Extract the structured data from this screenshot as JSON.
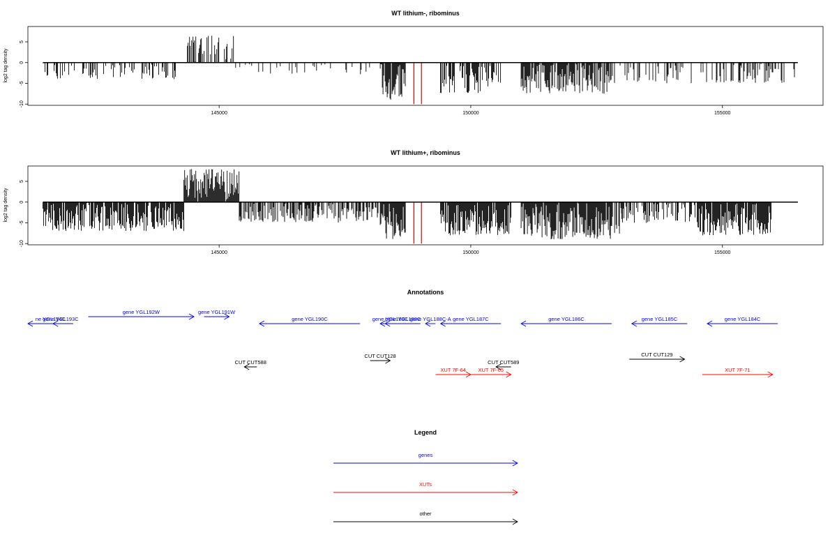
{
  "chart_data": [
    {
      "type": "bar",
      "title": "WT lithium-, ribominus",
      "ylabel": "log2 tag density",
      "xlabel": "",
      "xlim": [
        141200,
        157000
      ],
      "ylim": [
        -10.3,
        8.7
      ],
      "x_ticks": [
        145000,
        150000,
        155000
      ],
      "x_tick_labels": [
        "145000",
        "150000",
        "155000"
      ],
      "y_ticks": [
        -10,
        -5,
        0,
        5
      ],
      "y_tick_labels": [
        "-10",
        "-5",
        "0",
        "5"
      ],
      "grid": false,
      "range": [
        141500,
        156500
      ],
      "baseline_color": "#000000",
      "bar_color": "#000000",
      "highlight_color": "#dd0000",
      "highlights": [
        {
          "x": 148870,
          "y": -10
        },
        {
          "x": 149020,
          "y": -10
        }
      ],
      "regions": [
        {
          "start": 141500,
          "end": 144300,
          "sign": -1,
          "fill": 0.35,
          "max": 4
        },
        {
          "start": 144300,
          "end": 145300,
          "sign": 1,
          "fill": 0.45,
          "max": 6.5
        },
        {
          "start": 145300,
          "end": 148200,
          "sign": -1,
          "fill": 0.15,
          "max": 3
        },
        {
          "start": 148200,
          "end": 148700,
          "sign": -1,
          "fill": 0.95,
          "max": 9
        },
        {
          "start": 149400,
          "end": 150600,
          "sign": -1,
          "fill": 0.6,
          "max": 7.5
        },
        {
          "start": 151000,
          "end": 152800,
          "sign": -1,
          "fill": 0.8,
          "max": 7.5
        },
        {
          "start": 152800,
          "end": 156500,
          "sign": -1,
          "fill": 0.3,
          "max": 5
        }
      ]
    },
    {
      "type": "bar",
      "title": "WT lithium+, ribominus",
      "ylabel": "log2 tag density",
      "xlabel": "",
      "xlim": [
        141200,
        157000
      ],
      "ylim": [
        -10.3,
        8.7
      ],
      "x_ticks": [
        145000,
        150000,
        155000
      ],
      "x_tick_labels": [
        "145000",
        "150000",
        "155000"
      ],
      "y_ticks": [
        -10,
        -5,
        0,
        5
      ],
      "y_tick_labels": [
        "-10",
        "-5",
        "0",
        "5"
      ],
      "grid": false,
      "range": [
        141500,
        156500
      ],
      "baseline_color": "#000000",
      "bar_color": "#000000",
      "highlight_color": "#dd0000",
      "highlights": [
        {
          "x": 148870,
          "y": -10
        },
        {
          "x": 149020,
          "y": -10
        }
      ],
      "regions": [
        {
          "start": 141500,
          "end": 144300,
          "sign": -1,
          "fill": 0.9,
          "max": 7
        },
        {
          "start": 144300,
          "end": 145400,
          "sign": 1,
          "fill": 1.0,
          "max": 8
        },
        {
          "start": 145400,
          "end": 148200,
          "sign": -1,
          "fill": 0.55,
          "max": 5
        },
        {
          "start": 148200,
          "end": 148700,
          "sign": -1,
          "fill": 1.0,
          "max": 9
        },
        {
          "start": 149400,
          "end": 150800,
          "sign": -1,
          "fill": 0.9,
          "max": 8
        },
        {
          "start": 151000,
          "end": 153000,
          "sign": -1,
          "fill": 0.95,
          "max": 9
        },
        {
          "start": 153000,
          "end": 154500,
          "sign": -1,
          "fill": 0.5,
          "max": 5
        },
        {
          "start": 154500,
          "end": 156000,
          "sign": -1,
          "fill": 0.95,
          "max": 8
        }
      ]
    }
  ],
  "annotations": {
    "title": "Annotations",
    "genes": [
      {
        "label": "ne YGL194C",
        "start": 141200,
        "end": 142100,
        "dir": "left"
      },
      {
        "label": "gene YGL193C",
        "start": 141700,
        "end": 142000,
        "dir": "left"
      },
      {
        "label": "gene YGL192W",
        "start": 142400,
        "end": 144500,
        "dir": "right"
      },
      {
        "label": "gene YGL191W",
        "start": 144700,
        "end": 145200,
        "dir": "right"
      },
      {
        "label": "gene YGL190C",
        "start": 145800,
        "end": 147800,
        "dir": "left"
      },
      {
        "label": "gene YGL189C",
        "start": 148200,
        "end": 148600,
        "dir": "left"
      },
      {
        "label": "gene YGL188C",
        "start": 148300,
        "end": 149000,
        "dir": "left"
      },
      {
        "label": "gene YGL188C-A",
        "start": 149100,
        "end": 149300,
        "dir": "left"
      },
      {
        "label": "gene YGL187C",
        "start": 149400,
        "end": 150600,
        "dir": "left"
      },
      {
        "label": "gene YGL186C",
        "start": 151000,
        "end": 152800,
        "dir": "left"
      },
      {
        "label": "gene YGL185C",
        "start": 153200,
        "end": 154300,
        "dir": "left"
      },
      {
        "label": "gene YGL184C",
        "start": 154700,
        "end": 156100,
        "dir": "left"
      }
    ],
    "xuts": [
      {
        "label": "XUT 7F-64",
        "start": 149300,
        "end": 150000,
        "dir": "right"
      },
      {
        "label": "XUT 7F-65",
        "start": 150000,
        "end": 150800,
        "dir": "right"
      },
      {
        "label": "XUT 7F-71",
        "start": 154600,
        "end": 156000,
        "dir": "right"
      }
    ],
    "other": [
      {
        "label": "CUT CUT588",
        "start": 145500,
        "end": 145750,
        "dir": "left"
      },
      {
        "label": "CUT CUT128",
        "start": 148000,
        "end": 148400,
        "dir": "right"
      },
      {
        "label": "CUT CUT589",
        "start": 150500,
        "end": 150800,
        "dir": "left"
      },
      {
        "label": "CUT CUT129",
        "start": 153150,
        "end": 154250,
        "dir": "right"
      }
    ]
  },
  "legend": {
    "title": "Legend",
    "items": [
      {
        "label": "genes",
        "color": "#0000ff"
      },
      {
        "label": "XUTs",
        "color": "#ff0000"
      },
      {
        "label": "other",
        "color": "#000000"
      }
    ]
  },
  "colors": {
    "genes": "#0000ff",
    "xuts": "#ff0000",
    "other": "#000000"
  }
}
